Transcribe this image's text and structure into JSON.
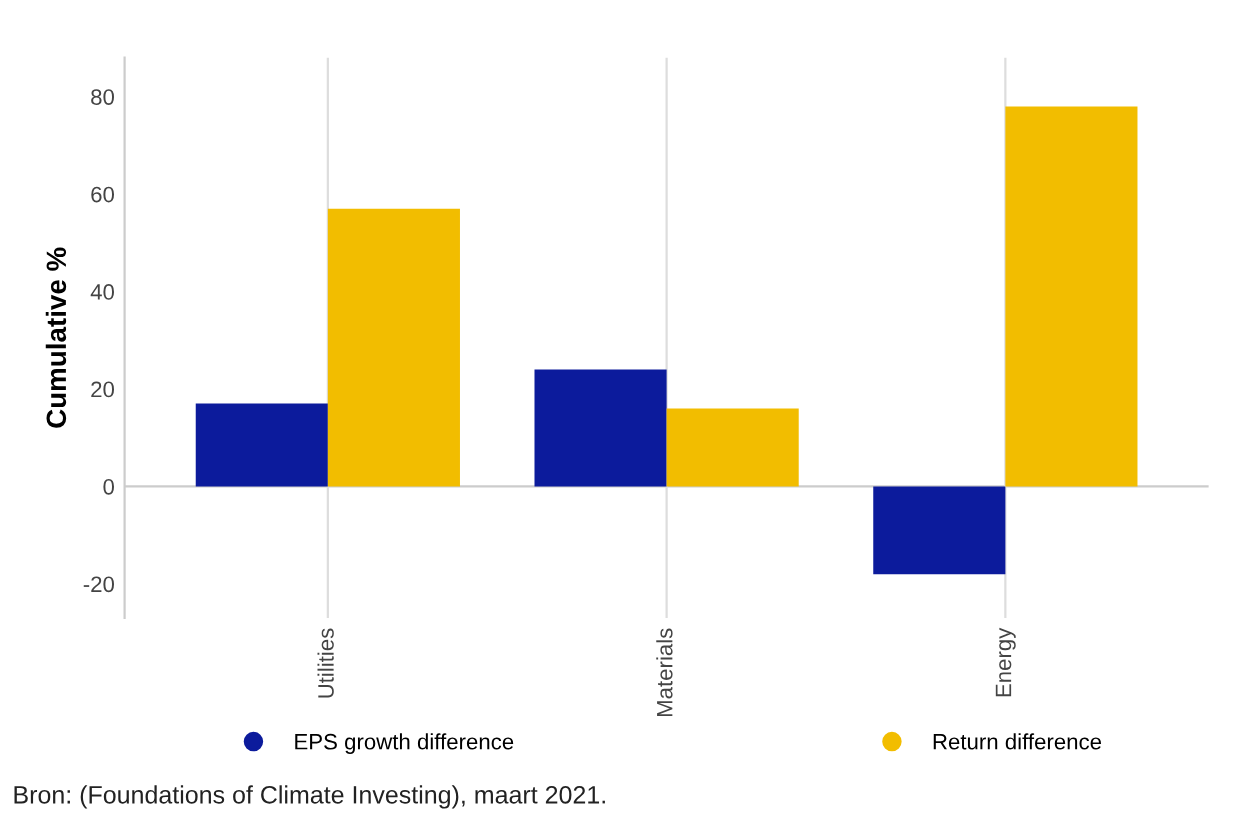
{
  "chart_data": {
    "type": "bar",
    "ylabel": "Cumulative %",
    "categories": [
      "Utilities",
      "Materials",
      "Energy"
    ],
    "series": [
      {
        "name": "EPS growth difference",
        "color": "#0c1b9c",
        "values": [
          17,
          24,
          -18
        ]
      },
      {
        "name": "Return difference",
        "color": "#f2bd00",
        "values": [
          57,
          16,
          78
        ]
      }
    ],
    "ylim": [
      -27,
      88
    ],
    "yticks": [
      -20,
      0,
      20,
      40,
      60,
      80
    ],
    "grid": "x",
    "legend": "bottom",
    "annotations": [
      "Bron: (Foundations of Climate Investing), maart 2021."
    ]
  }
}
